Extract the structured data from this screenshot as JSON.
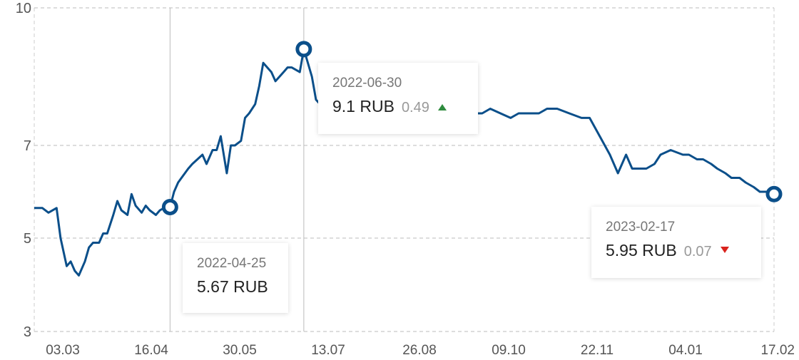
{
  "chart_data": {
    "type": "line",
    "xlabel": "",
    "ylabel": "",
    "ylim": [
      3,
      10
    ],
    "y_ticks": [
      "3",
      "5",
      "7",
      "10"
    ],
    "x_ticks": [
      "03.03",
      "16.04",
      "30.05",
      "13.07",
      "26.08",
      "09.10",
      "22.11",
      "04.01",
      "17.02"
    ],
    "grid": true,
    "line_color": "#0b4f8a",
    "unit": "RUB",
    "series": [
      {
        "x": [
          "2022-02-17",
          "2022-02-21",
          "2022-02-24",
          "2022-02-28",
          "2022-03-02",
          "2022-03-05",
          "2022-03-07",
          "2022-03-09",
          "2022-03-11",
          "2022-03-14",
          "2022-03-16",
          "2022-03-18",
          "2022-03-21",
          "2022-03-23",
          "2022-03-25",
          "2022-03-28",
          "2022-03-30",
          "2022-04-01",
          "2022-04-04",
          "2022-04-06",
          "2022-04-08",
          "2022-04-11",
          "2022-04-13",
          "2022-04-15",
          "2022-04-18",
          "2022-04-20",
          "2022-04-22",
          "2022-04-25",
          "2022-04-27",
          "2022-04-29",
          "2022-05-04",
          "2022-05-06",
          "2022-05-11",
          "2022-05-13",
          "2022-05-16",
          "2022-05-18",
          "2022-05-20",
          "2022-05-23",
          "2022-05-25",
          "2022-05-27",
          "2022-05-30",
          "2022-06-01",
          "2022-06-03",
          "2022-06-06",
          "2022-06-08",
          "2022-06-10",
          "2022-06-14",
          "2022-06-16",
          "2022-06-20",
          "2022-06-22",
          "2022-06-24",
          "2022-06-28",
          "2022-06-30",
          "2022-07-04",
          "2022-07-06",
          "2022-07-08",
          "2022-07-12",
          "2022-07-14",
          "2022-07-18",
          "2022-07-21",
          "2022-07-26",
          "2022-08-01",
          "2022-08-05",
          "2022-08-10",
          "2022-08-15",
          "2022-08-19",
          "2022-08-24",
          "2022-08-29",
          "2022-09-02",
          "2022-09-07",
          "2022-09-12",
          "2022-09-16",
          "2022-09-21",
          "2022-09-26",
          "2022-09-30",
          "2022-10-05",
          "2022-10-10",
          "2022-10-14",
          "2022-10-19",
          "2022-10-24",
          "2022-10-28",
          "2022-11-02",
          "2022-11-08",
          "2022-11-14",
          "2022-11-18",
          "2022-11-23",
          "2022-11-28",
          "2022-12-02",
          "2022-12-06",
          "2022-12-09",
          "2022-12-13",
          "2022-12-16",
          "2022-12-20",
          "2022-12-23",
          "2022-12-28",
          "2023-01-03",
          "2023-01-06",
          "2023-01-10",
          "2023-01-13",
          "2023-01-17",
          "2023-01-20",
          "2023-01-24",
          "2023-01-27",
          "2023-01-31",
          "2023-02-03",
          "2023-02-07",
          "2023-02-10",
          "2023-02-14",
          "2023-02-17"
        ],
        "values": [
          5.65,
          5.65,
          5.55,
          5.65,
          5.0,
          4.4,
          4.5,
          4.3,
          4.2,
          4.5,
          4.8,
          4.9,
          4.9,
          5.1,
          5.1,
          5.5,
          5.8,
          5.6,
          5.5,
          5.95,
          5.7,
          5.55,
          5.7,
          5.6,
          5.5,
          5.6,
          5.65,
          5.67,
          6.0,
          6.2,
          6.5,
          6.6,
          6.8,
          6.6,
          6.9,
          6.9,
          7.2,
          6.4,
          7.0,
          7.0,
          7.1,
          7.6,
          7.7,
          7.9,
          8.3,
          8.8,
          8.6,
          8.4,
          8.6,
          8.7,
          8.7,
          8.6,
          9.1,
          8.5,
          8.0,
          7.9,
          8.1,
          8.4,
          8.2,
          8.3,
          8.5,
          8.4,
          8.2,
          8.4,
          8.3,
          8.4,
          8.2,
          8.1,
          8.4,
          8.5,
          7.9,
          7.6,
          7.7,
          7.7,
          7.8,
          7.7,
          7.6,
          7.7,
          7.7,
          7.7,
          7.8,
          7.8,
          7.7,
          7.6,
          7.6,
          7.2,
          6.8,
          6.4,
          6.8,
          6.5,
          6.5,
          6.5,
          6.6,
          6.8,
          6.9,
          6.8,
          6.8,
          6.7,
          6.7,
          6.6,
          6.5,
          6.4,
          6.3,
          6.3,
          6.2,
          6.1,
          6.0,
          6.0,
          5.95
        ]
      }
    ],
    "markers": [
      {
        "date": "2022-04-25",
        "value": 5.67
      },
      {
        "date": "2022-06-30",
        "value": 9.1
      },
      {
        "date": "2023-02-17",
        "value": 5.95
      }
    ],
    "annotations": [
      {
        "date": "2022-04-25",
        "value_text": "5.67 RUB",
        "change": "",
        "direction": "none"
      },
      {
        "date": "2022-06-30",
        "value_text": "9.1 RUB",
        "change": "0.49",
        "direction": "up"
      },
      {
        "date": "2023-02-17",
        "value_text": "5.95 RUB",
        "change": "0.07",
        "direction": "down"
      }
    ]
  }
}
